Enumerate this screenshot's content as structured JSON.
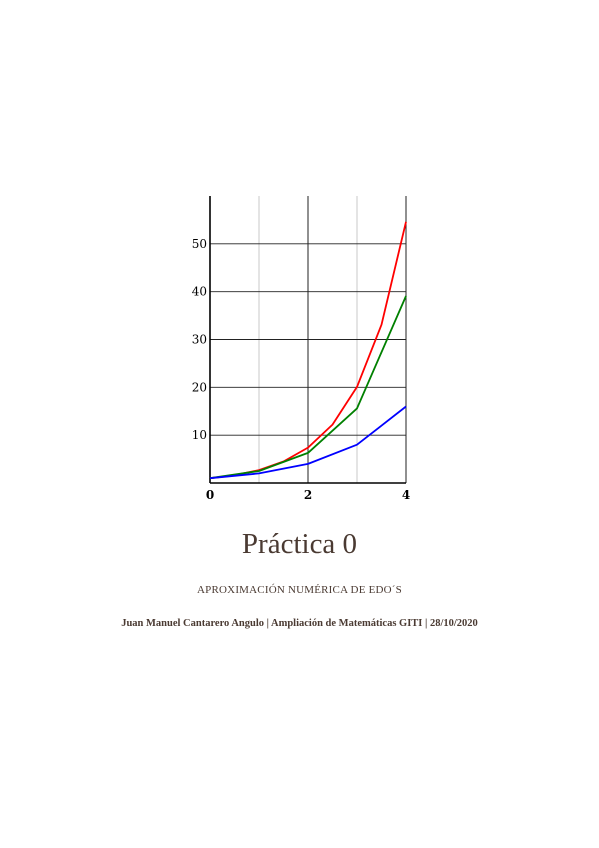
{
  "cover": {
    "title": "Práctica 0",
    "subtitle": "APROXIMACIÓN NUMÉRICA DE EDO´S",
    "author": "Juan Manuel Cantarero Angulo",
    "separator": "|",
    "course": "Ampliación de Matemáticas GITI",
    "date": "28/10/2020"
  },
  "chart_data": {
    "type": "line",
    "xlim": [
      0,
      4
    ],
    "ylim": [
      0,
      60
    ],
    "x_ticks": [
      0,
      2,
      4
    ],
    "x_tick_labels": [
      "0",
      "2",
      "4"
    ],
    "y_ticks": [
      10,
      20,
      30,
      40,
      50
    ],
    "y_tick_labels": [
      "10",
      "20",
      "30",
      "40",
      "50"
    ],
    "grid": true,
    "series": [
      {
        "color": "#ff0000",
        "x": [
          0,
          0.5,
          1,
          1.5,
          2,
          2.5,
          3,
          3.5,
          4
        ],
        "y": [
          1,
          1.6,
          2.7,
          4.5,
          7.4,
          12.2,
          20.1,
          33.1,
          54.6
        ]
      },
      {
        "color": "#008000",
        "x": [
          0,
          1,
          2,
          3,
          4
        ],
        "y": [
          1,
          2.5,
          6.3,
          15.6,
          39.1
        ]
      },
      {
        "color": "#0000ff",
        "x": [
          0,
          1,
          2,
          3,
          4
        ],
        "y": [
          1,
          2,
          4,
          8,
          16
        ]
      }
    ]
  }
}
